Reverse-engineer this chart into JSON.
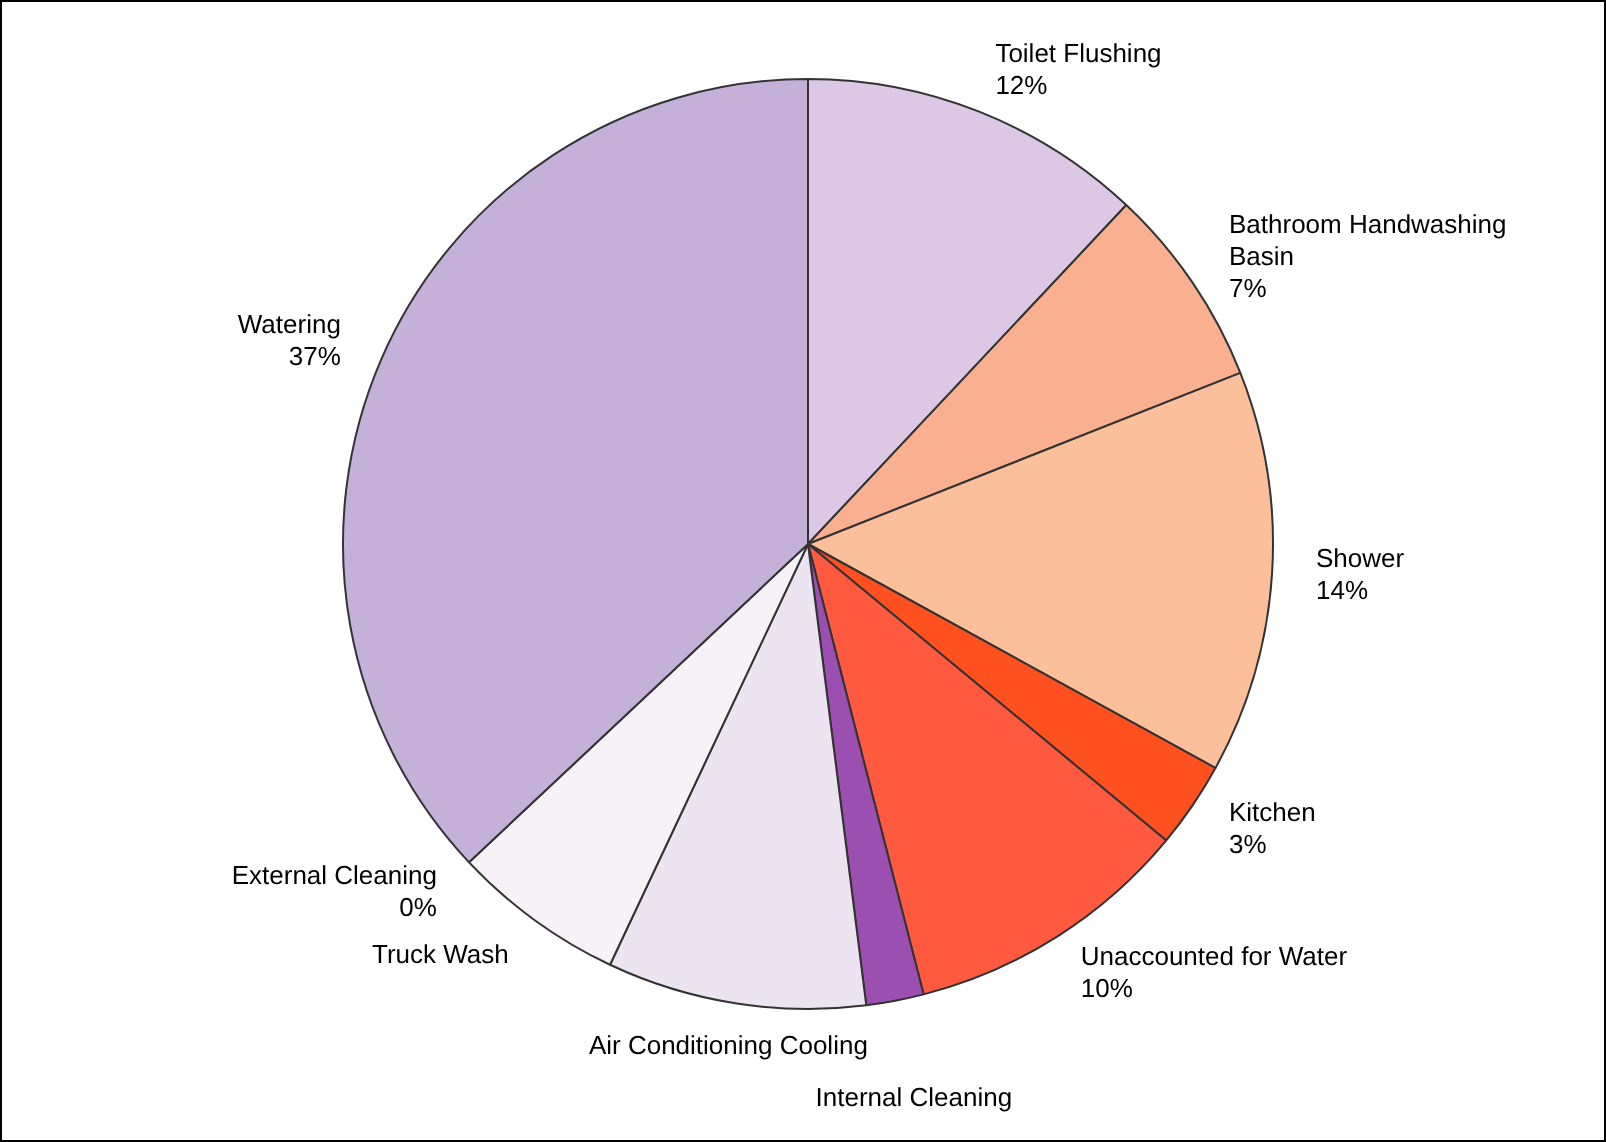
{
  "chart_data": {
    "type": "pie",
    "categories": [
      "Toilet Flushing",
      "Bathroom Handwashing Basin",
      "Shower",
      "Kitchen",
      "Unaccounted for Water",
      "Internal Cleaning",
      "Air Conditioning Cooling",
      "Truck Wash",
      "External Cleaning",
      "Watering"
    ],
    "values": [
      12,
      7,
      14,
      3,
      10,
      2,
      9,
      6,
      0,
      37
    ],
    "value_labels": [
      "12%",
      "7%",
      "14%",
      "3%",
      "10%",
      null,
      null,
      null,
      "0%",
      "37%"
    ],
    "colors": [
      "#dcc8e4",
      "#f8b090",
      "#fbbf9c",
      "#ff5020",
      "#ff5a40",
      "#9b4fb0",
      "#ece4f0",
      "#f6f2f8",
      "#5a3a8a",
      "#c4b0d8"
    ],
    "legend": false
  }
}
